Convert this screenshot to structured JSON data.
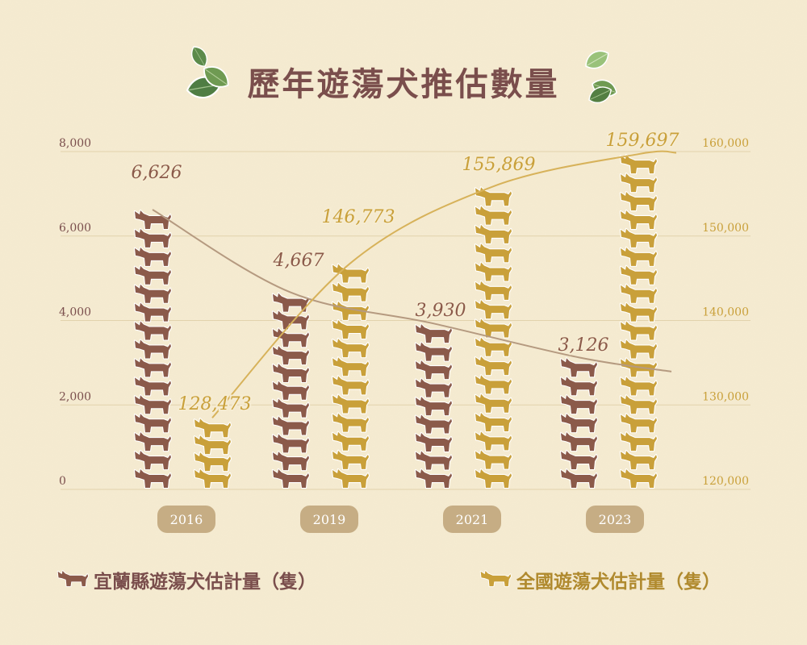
{
  "title": "歷年遊蕩犬推估數量",
  "colors": {
    "background": "#f6ecd2",
    "local": "#8b5a4a",
    "national": "#c9a03a",
    "local_line": "#b59a80",
    "national_line": "#d7b25a",
    "pill": "#c6ad84",
    "title": "#7a4e4c",
    "grid": "#e2d2ac"
  },
  "icons": {
    "dog": "dog-icon",
    "leaf": "leaf-icon"
  },
  "chart_data": {
    "type": "bar",
    "title": "歷年遊蕩犬推估數量",
    "categories": [
      "2016",
      "2019",
      "2021",
      "2023"
    ],
    "series": [
      {
        "name": "宜蘭縣遊蕩犬估計量（隻）",
        "axis": "left",
        "values": [
          6626,
          4667,
          3930,
          3126
        ],
        "labels": [
          "6,626",
          "4,667",
          "3,930",
          "3,126"
        ],
        "color": "#8b5a4a"
      },
      {
        "name": "全國遊蕩犬估計量（隻）",
        "axis": "right",
        "values": [
          128473,
          146773,
          155869,
          159697
        ],
        "labels": [
          "128,473",
          "146,773",
          "155,869",
          "159,697"
        ],
        "color": "#c9a03a"
      }
    ],
    "y_left": {
      "ticks": [
        "0",
        "2,000",
        "4,000",
        "6,000",
        "8,000"
      ],
      "values": [
        0,
        2000,
        4000,
        6000,
        8000
      ],
      "range": [
        0,
        8000
      ]
    },
    "y_right": {
      "ticks": [
        "120,000",
        "130,000",
        "140,000",
        "150,000",
        "160,000"
      ],
      "values": [
        120000,
        130000,
        140000,
        150000,
        160000
      ],
      "range": [
        120000,
        160000
      ]
    },
    "grid": true,
    "legend": "bottom"
  },
  "legend": {
    "local": "宜蘭縣遊蕩犬估計量（隻）",
    "national": "全國遊蕩犬估計量（隻）"
  }
}
